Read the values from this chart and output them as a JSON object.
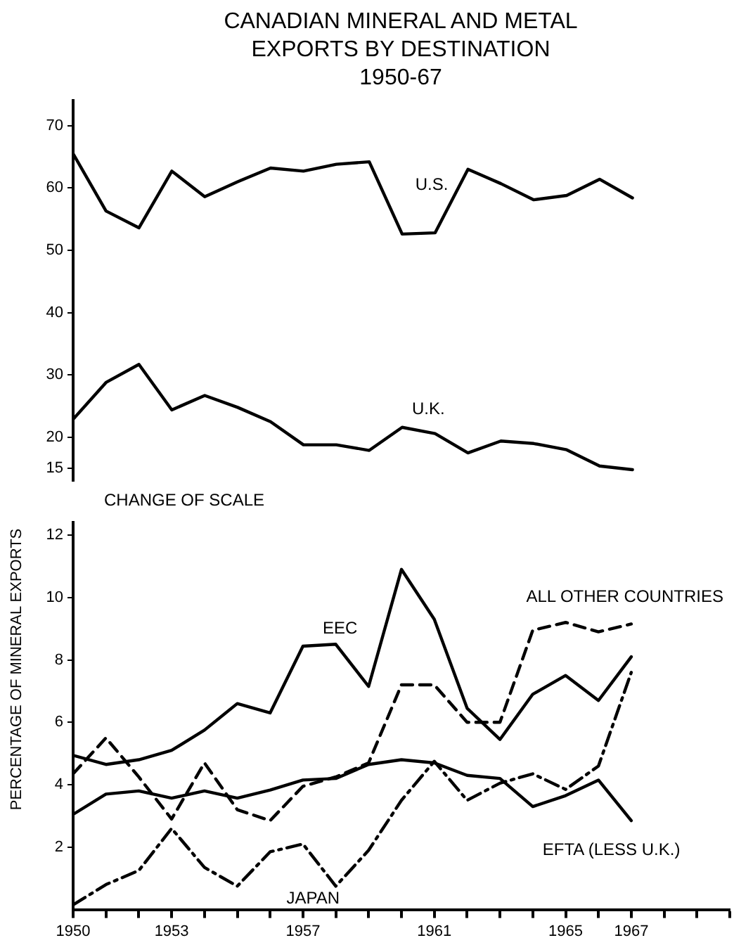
{
  "chart_data": [
    {
      "type": "line",
      "title": "CANADIAN MINERAL AND METAL EXPORTS BY DESTINATION",
      "subtitle": "1950-67",
      "ylabel": "PERCENTAGE OF MINERAL EXPORTS",
      "x": [
        1950,
        1951,
        1952,
        1953,
        1954,
        1955,
        1956,
        1957,
        1958,
        1959,
        1960,
        1961,
        1962,
        1963,
        1964,
        1965,
        1966,
        1967
      ],
      "series": [
        {
          "name": "U.S.",
          "color": "#000000",
          "line_style": "solid",
          "values": [
            65.5,
            56.3,
            53.6,
            62.7,
            58.6,
            61,
            63.2,
            62.7,
            63.8,
            64.2,
            52.6,
            52.8,
            63,
            60.7,
            58.1,
            58.8,
            61.4,
            58.4
          ]
        },
        {
          "name": "U.K.",
          "color": "#000000",
          "line_style": "solid",
          "values": [
            22.9,
            28.8,
            31.7,
            24.4,
            26.7,
            24.8,
            22.5,
            18.8,
            18.8,
            17.9,
            21.6,
            20.6,
            17.5,
            19.4,
            19.0,
            18.0,
            15.4,
            14.8
          ]
        }
      ],
      "ylim": [
        13,
        74
      ],
      "yticks": [
        15,
        20,
        30,
        40,
        50,
        60,
        70
      ],
      "tick_labels": "y",
      "grid": false,
      "legend": false,
      "marker": "none",
      "annotations": [
        "CHANGE OF SCALE"
      ]
    },
    {
      "type": "line",
      "x": [
        1950,
        1951,
        1952,
        1953,
        1954,
        1955,
        1956,
        1957,
        1958,
        1959,
        1960,
        1961,
        1962,
        1963,
        1964,
        1965,
        1966,
        1967
      ],
      "series": [
        {
          "name": "EEC",
          "color": "#000000",
          "line_style": "solid",
          "values": [
            4.94,
            4.65,
            4.8,
            5.1,
            5.75,
            6.6,
            6.3,
            8.44,
            8.5,
            7.15,
            10.9,
            9.3,
            6.45,
            5.45,
            6.9,
            7.5,
            6.7,
            8.1
          ]
        },
        {
          "name": "ALL OTHER COUNTRIES",
          "color": "#000000",
          "line_style": "dashed",
          "values": [
            4.35,
            5.5,
            4.25,
            2.9,
            4.7,
            3.2,
            2.85,
            3.95,
            4.25,
            4.7,
            7.2,
            7.2,
            6.0,
            6.0,
            8.95,
            9.2,
            8.9,
            9.15
          ]
        },
        {
          "name": "EFTA (LESS U.K.)",
          "color": "#000000",
          "line_style": "solid",
          "values": [
            3.05,
            3.7,
            3.8,
            3.57,
            3.8,
            3.57,
            3.83,
            4.15,
            4.2,
            4.65,
            4.8,
            4.7,
            4.3,
            4.2,
            3.3,
            3.65,
            4.15,
            2.85
          ]
        },
        {
          "name": "JAPAN",
          "color": "#000000",
          "line_style": "dashdot",
          "values": [
            0.15,
            0.8,
            1.25,
            2.6,
            1.35,
            0.75,
            1.85,
            2.1,
            0.75,
            1.9,
            3.5,
            4.75,
            3.5,
            4.05,
            4.35,
            3.85,
            4.6,
            7.6
          ]
        }
      ],
      "xlim": [
        1950,
        1970
      ],
      "xticks": [
        1950,
        {
          "value": 1951,
          "label": null
        },
        {
          "value": 1952,
          "label": null
        },
        1953,
        {
          "value": 1954,
          "label": null
        },
        {
          "value": 1955,
          "label": null
        },
        {
          "value": 1956,
          "label": null
        },
        1957,
        {
          "value": 1958,
          "label": null
        },
        {
          "value": 1959,
          "label": null
        },
        {
          "value": 1960,
          "label": null
        },
        1961,
        {
          "value": 1962,
          "label": null
        },
        {
          "value": 1963,
          "label": null
        },
        {
          "value": 1964,
          "label": null
        },
        1965,
        {
          "value": 1966,
          "label": null
        },
        1967,
        {
          "value": 1968,
          "label": null
        },
        {
          "value": 1969,
          "label": null
        },
        {
          "value": 1970,
          "label": null
        }
      ],
      "ylim": [
        0,
        12.4
      ],
      "yticks": [
        2,
        4,
        6,
        8,
        10,
        12
      ],
      "grid": false,
      "legend": false,
      "marker": "none"
    }
  ]
}
